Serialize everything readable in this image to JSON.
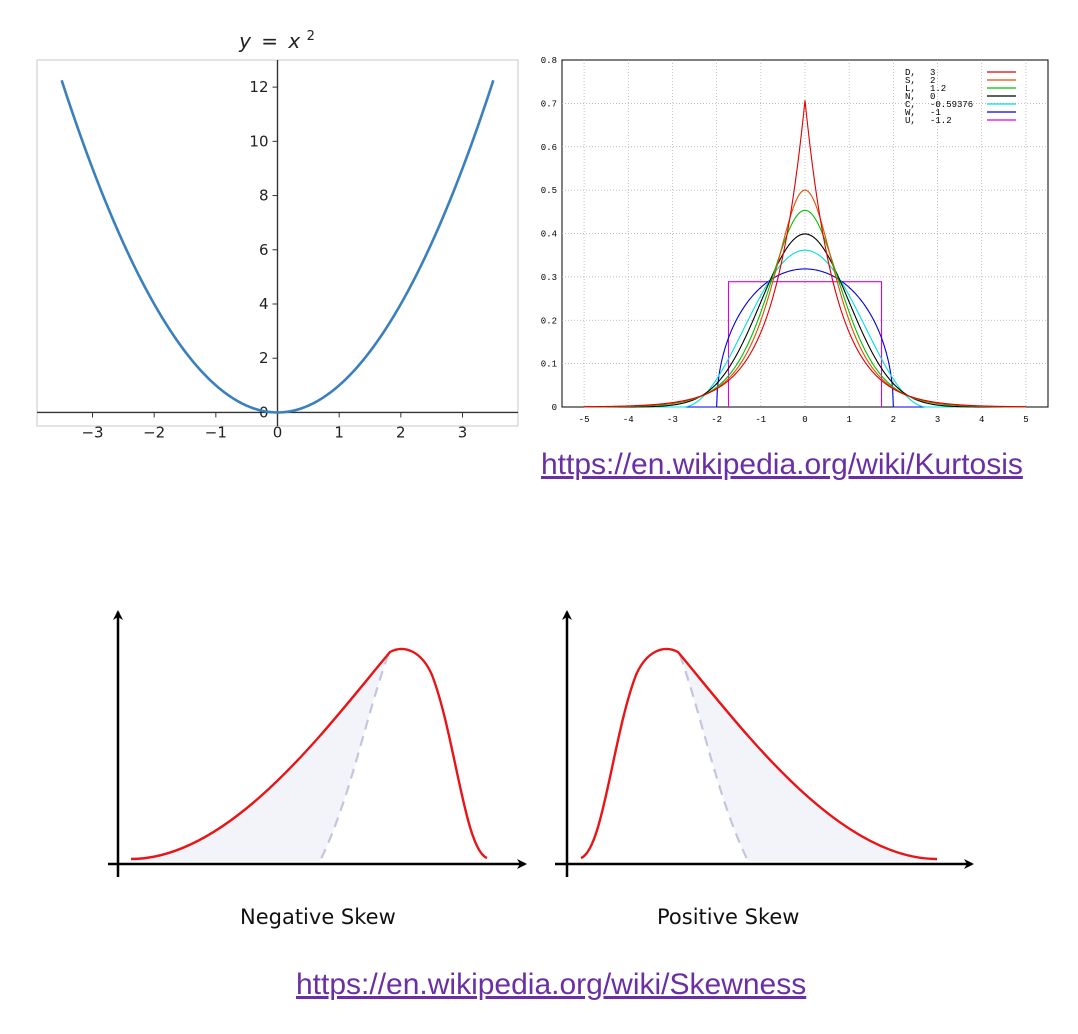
{
  "parabola_chart": {
    "title": "y = x²",
    "title_parts": {
      "y": "y",
      "eq": "=",
      "x": "x",
      "sup": "2"
    }
  },
  "kurtosis_chart": {},
  "skew_panels": {
    "negative": {
      "caption": "Negative Skew"
    },
    "positive": {
      "caption": "Positive Skew"
    }
  },
  "links": {
    "kurtosis": "https://en.wikipedia.org/wiki/Kurtosis",
    "skewness": "https://en.wikipedia.org/wiki/Skewness"
  },
  "colors": {
    "parabola_line": "#3a7fbe",
    "link": "#6b2fa5",
    "skew_curve": "#e81416",
    "skew_fill": "#f3f4f9",
    "skew_dashed": "#c3c6dc"
  },
  "chart_data": [
    {
      "type": "line",
      "title": "y = x²",
      "series": [
        {
          "function": "x^2",
          "x_range": [
            -3.5,
            3.5
          ]
        }
      ],
      "xlim": [
        -3.9,
        3.9
      ],
      "ylim": [
        -0.5,
        13
      ],
      "xticks": [
        "−3",
        "−2",
        "−1",
        "0",
        "1",
        "2",
        "3"
      ],
      "yticks": [
        "0",
        "2",
        "4",
        "6",
        "8",
        "10",
        "12"
      ],
      "grid": false
    },
    {
      "type": "line",
      "xlim": [
        -5.5,
        5.5
      ],
      "ylim": [
        0,
        0.8
      ],
      "xticks": [
        "-5",
        "-4",
        "-3",
        "-2",
        "-1",
        "0",
        "1",
        "2",
        "3",
        "4",
        "5"
      ],
      "yticks": [
        "0",
        "0.1",
        "0.2",
        "0.3",
        "0.4",
        "0.5",
        "0.6",
        "0.7",
        "0.8"
      ],
      "grid": true,
      "legend_position": "top-right",
      "series": [
        {
          "code": "D,",
          "value": "3",
          "color": "#e00000",
          "dist": "laplace",
          "peak": 0.707
        },
        {
          "code": "S,",
          "value": "2",
          "color": "#e05000",
          "dist": "sech",
          "peak": 0.5
        },
        {
          "code": "L,",
          "value": "1.2",
          "color": "#00c000",
          "dist": "logistic",
          "peak": 0.453
        },
        {
          "code": "N,",
          "value": "0",
          "color": "#000000",
          "dist": "normal",
          "peak": 0.399
        },
        {
          "code": "C,",
          "value": "-0.59376",
          "color": "#00e0e0",
          "dist": "raised_cosine",
          "peak": 0.36
        },
        {
          "code": "W,",
          "value": "-1",
          "color": "#0000e0",
          "dist": "semicircle",
          "peak": 0.318
        },
        {
          "code": "U,",
          "value": "-1.2",
          "color": "#e000e0",
          "dist": "uniform",
          "peak": 0.289
        }
      ]
    }
  ]
}
